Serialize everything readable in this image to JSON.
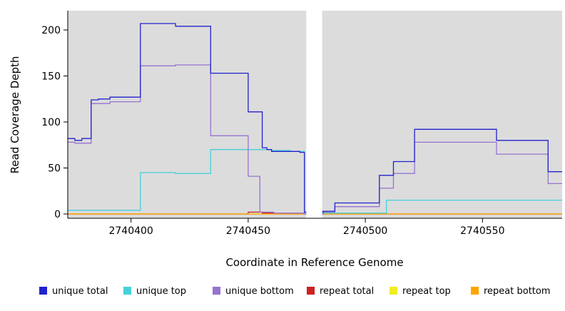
{
  "chart_data": {
    "type": "line",
    "step": true,
    "title": "",
    "xlabel": "Coordinate in Reference Genome",
    "ylabel": "Read Coverage Depth",
    "xlim": [
      2740373,
      2740584
    ],
    "ylim": [
      0,
      221
    ],
    "xticks": [
      2740400,
      2740450,
      2740500,
      2740550
    ],
    "yticks": [
      0,
      50,
      100,
      150,
      200
    ],
    "grid": false,
    "legend_position": "bottom",
    "plot_background": "#DCDCDC",
    "page_background": "#FFFFFF",
    "axis_color": "#000000",
    "gap_region": [
      2740474.8,
      2740481.6
    ],
    "draw_order": [
      4,
      3,
      5,
      1,
      2,
      0
    ],
    "series": [
      {
        "name": "unique total",
        "color": "#2222CC",
        "points": [
          [
            2740373,
            82
          ],
          [
            2740376,
            80
          ],
          [
            2740379,
            82
          ],
          [
            2740383,
            124
          ],
          [
            2740386,
            125
          ],
          [
            2740391,
            127
          ],
          [
            2740404,
            207
          ],
          [
            2740419,
            204
          ],
          [
            2740434,
            153
          ],
          [
            2740450,
            111
          ],
          [
            2740456,
            72
          ],
          [
            2740458,
            70
          ],
          [
            2740460,
            68
          ],
          [
            2740472,
            67
          ],
          [
            2740474,
            2
          ],
          [
            2740482,
            3
          ],
          [
            2740487,
            12
          ],
          [
            2740506,
            42
          ],
          [
            2740512,
            57
          ],
          [
            2740521,
            92
          ],
          [
            2740556,
            80
          ],
          [
            2740578,
            46
          ]
        ]
      },
      {
        "name": "unique top",
        "color": "#45D0DC",
        "points": [
          [
            2740373,
            4
          ],
          [
            2740404,
            45
          ],
          [
            2740419,
            44
          ],
          [
            2740434,
            70
          ],
          [
            2740460,
            69
          ],
          [
            2740468,
            68
          ],
          [
            2740474,
            1
          ],
          [
            2740482,
            1
          ],
          [
            2740509,
            15
          ]
        ]
      },
      {
        "name": "unique bottom",
        "color": "#9673D0",
        "points": [
          [
            2740373,
            78
          ],
          [
            2740376,
            77
          ],
          [
            2740383,
            120
          ],
          [
            2740391,
            122
          ],
          [
            2740404,
            161
          ],
          [
            2740419,
            162
          ],
          [
            2740434,
            85
          ],
          [
            2740450,
            41
          ],
          [
            2740455,
            2
          ],
          [
            2740461,
            1
          ],
          [
            2740474,
            0
          ],
          [
            2740482,
            2
          ],
          [
            2740487,
            8
          ],
          [
            2740506,
            28
          ],
          [
            2740512,
            44
          ],
          [
            2740521,
            78
          ],
          [
            2740556,
            65
          ],
          [
            2740578,
            33
          ]
        ]
      },
      {
        "name": "repeat total",
        "color": "#CC2222",
        "points": [
          [
            2740373,
            0
          ],
          [
            2740450,
            2
          ],
          [
            2740456,
            1
          ],
          [
            2740461,
            0
          ]
        ]
      },
      {
        "name": "repeat top",
        "color": "#EEEE22",
        "points": [
          [
            2740373,
            0
          ]
        ]
      },
      {
        "name": "repeat bottom",
        "color": "#FFA500",
        "points": [
          [
            2740373,
            0
          ]
        ]
      }
    ]
  }
}
